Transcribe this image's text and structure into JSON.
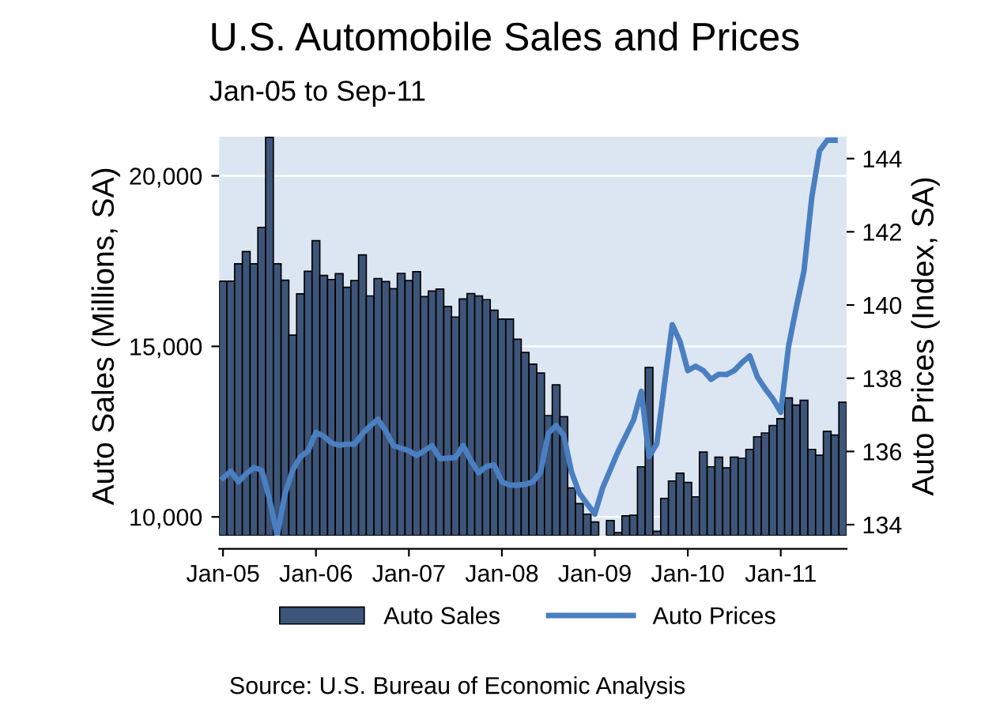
{
  "chart_data": {
    "type": "bar",
    "title": "U.S. Automobile Sales and Prices",
    "subtitle": "Jan-05 to Sep-11",
    "ylabel": "Auto Sales (Millions, SA)",
    "y2label": "Auto Prices (Index, SA)",
    "categories": [
      "Jan-05",
      null,
      null,
      null,
      null,
      null,
      null,
      null,
      null,
      null,
      null,
      null,
      "Jan-06",
      null,
      null,
      null,
      null,
      null,
      null,
      null,
      null,
      null,
      null,
      null,
      "Jan-07",
      null,
      null,
      null,
      null,
      null,
      null,
      null,
      null,
      null,
      null,
      null,
      "Jan-08",
      null,
      null,
      null,
      null,
      null,
      null,
      null,
      null,
      null,
      null,
      null,
      "Jan-09",
      null,
      null,
      null,
      null,
      null,
      null,
      null,
      null,
      null,
      null,
      null,
      "Jan-10",
      null,
      null,
      null,
      null,
      null,
      null,
      null,
      null,
      null,
      null,
      null,
      "Jan-11",
      null,
      null,
      null,
      null,
      null,
      null,
      null,
      null
    ],
    "series": [
      {
        "name": "Auto Sales",
        "color": "#3d5578",
        "values": [
          16910,
          16910,
          17420,
          17780,
          17420,
          18490,
          21130,
          17420,
          16940,
          15330,
          16540,
          17200,
          18100,
          17080,
          16960,
          17130,
          16730,
          16930,
          17680,
          16480,
          16990,
          16900,
          16690,
          17140,
          16930,
          17190,
          16460,
          16620,
          16680,
          16170,
          15860,
          16390,
          16550,
          16480,
          16370,
          16060,
          15800,
          15800,
          15210,
          14820,
          14480,
          14220,
          12970,
          13870,
          12940,
          10850,
          10390,
          10080,
          9850,
          null,
          9890,
          9540,
          10030,
          10050,
          11470,
          14380,
          9580,
          10540,
          11050,
          11280,
          11010,
          10590,
          11900,
          11470,
          11750,
          11440,
          11750,
          11720,
          11980,
          12350,
          12460,
          12680,
          12880,
          13490,
          13280,
          13420,
          11980,
          11810,
          12510,
          12400,
          13360
        ]
      },
      {
        "name": "Auto Prices",
        "type": "line",
        "axis": "y2",
        "color": "#4a7fc1",
        "values": [
          135.27,
          135.46,
          135.17,
          135.39,
          135.56,
          135.49,
          134.7,
          133.7,
          134.84,
          135.49,
          135.85,
          136.02,
          136.52,
          136.42,
          136.23,
          136.17,
          136.2,
          136.2,
          136.49,
          136.7,
          136.88,
          136.56,
          136.16,
          136.09,
          136.02,
          135.89,
          136.02,
          136.16,
          135.8,
          135.82,
          135.83,
          136.16,
          135.75,
          135.42,
          135.59,
          135.63,
          135.17,
          135.08,
          135.08,
          135.1,
          135.17,
          135.43,
          136.5,
          136.71,
          136.43,
          135.43,
          134.86,
          134.57,
          134.29,
          135.0,
          135.5,
          136.0,
          136.43,
          136.86,
          137.64,
          135.86,
          136.21,
          137.86,
          139.46,
          139.0,
          138.21,
          138.33,
          138.21,
          137.97,
          138.11,
          138.1,
          138.21,
          138.43,
          138.61,
          138.03,
          137.71,
          137.43,
          137.07,
          138.86,
          139.93,
          140.93,
          142.93,
          144.21,
          144.5,
          144.5,
          null
        ]
      }
    ],
    "ylim": [
      9450,
      21150
    ],
    "yticks": [
      {
        "value": 10000,
        "label": "10,000"
      },
      {
        "value": 15000,
        "label": "15,000"
      },
      {
        "value": 20000,
        "label": "20,000"
      }
    ],
    "y2lim": [
      133.7,
      144.6
    ],
    "y2ticks": [
      134,
      136,
      138,
      140,
      142,
      144
    ],
    "grid": "y",
    "legend": "bottom",
    "marker": "none",
    "line_style": "solid",
    "annotations": [
      "Source: U.S. Bureau of Economic Analysis"
    ]
  }
}
